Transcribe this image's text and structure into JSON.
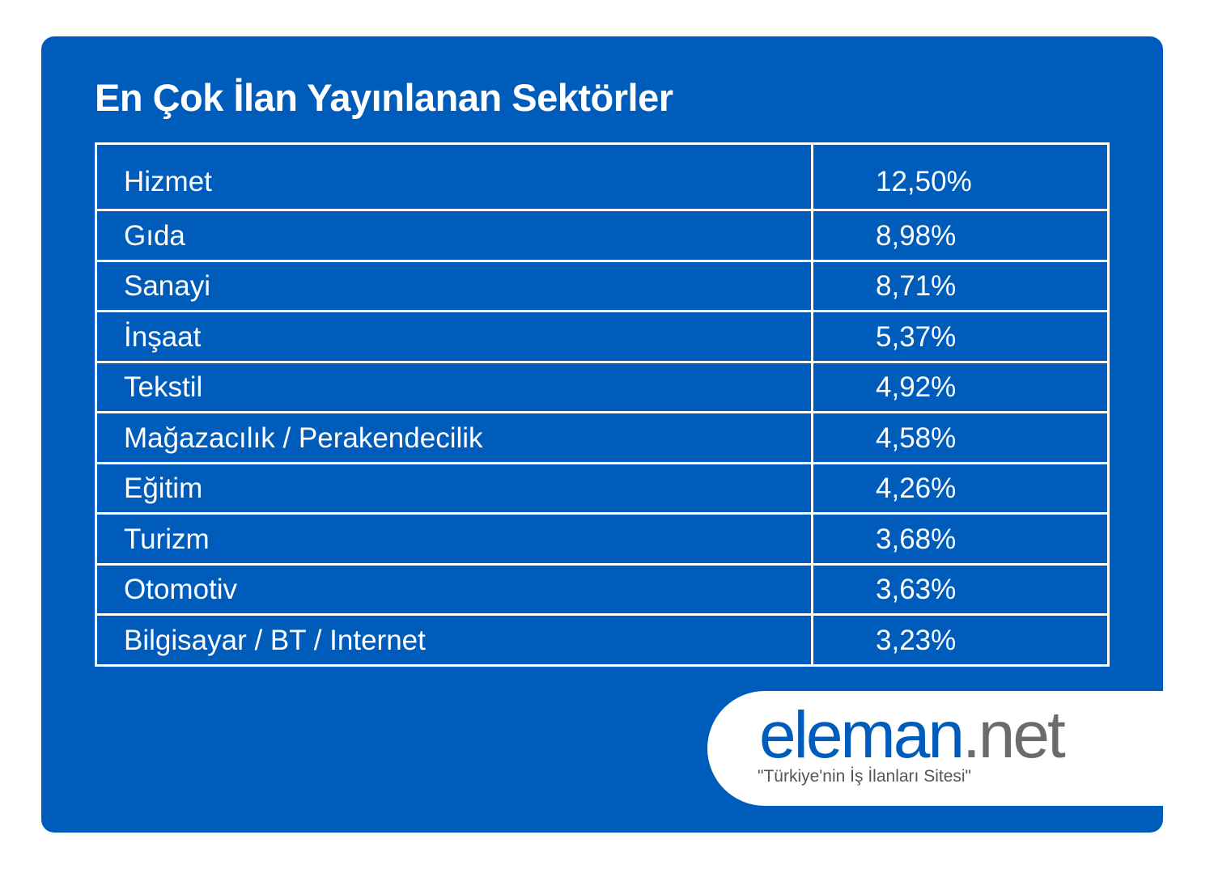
{
  "chart_data": {
    "type": "table",
    "title": "En Çok İlan Yayınlanan Sektörler",
    "rows": [
      {
        "label": "Hizmet",
        "value": "12,50%"
      },
      {
        "label": "Gıda",
        "value": "8,98%"
      },
      {
        "label": "Sanayi",
        "value": "8,71%"
      },
      {
        "label": "İnşaat",
        "value": "5,37%"
      },
      {
        "label": "Tekstil",
        "value": "4,92%"
      },
      {
        "label": "Mağazacılık / Perakendecilik",
        "value": "4,58%"
      },
      {
        "label": "Eğitim",
        "value": "4,26%"
      },
      {
        "label": "Turizm",
        "value": "3,68%"
      },
      {
        "label": "Otomotiv",
        "value": "3,63%"
      },
      {
        "label": "Bilgisayar / BT / Internet",
        "value": "3,23%"
      }
    ]
  },
  "brand": {
    "name_part1": "eleman",
    "name_part2": ".net",
    "tagline": "\"Türkiye'nin İş İlanları Sitesi\""
  },
  "colors": {
    "background": "#005cbb",
    "text": "#ffffff",
    "brand_blue": "#005cbb",
    "brand_gray": "#6b6b6b"
  }
}
